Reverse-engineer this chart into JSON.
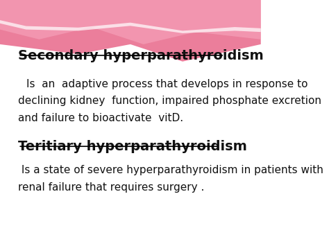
{
  "bg_color": "#ffffff",
  "title1": "Secondary hyperparathyroidism",
  "body1_line1": "Is  an  adaptive process that develops in response to",
  "body1_line2": "declining kidney  function, impaired phosphate excretion",
  "body1_line3": "and failure to bioactivate  vitD.",
  "title2": "Teritiary hyperparathyroidism",
  "body2_line1": " Is a state of severe hyperparathyroidism in patients with",
  "body2_line2": "renal failure that requires surgery .",
  "title_fontsize": 14,
  "body_fontsize": 11,
  "title_color": "#111111",
  "body_color": "#111111",
  "wave1_color": "#e8678a",
  "wave2_color": "#f5a0b8",
  "wave3_color": "#ffffff"
}
